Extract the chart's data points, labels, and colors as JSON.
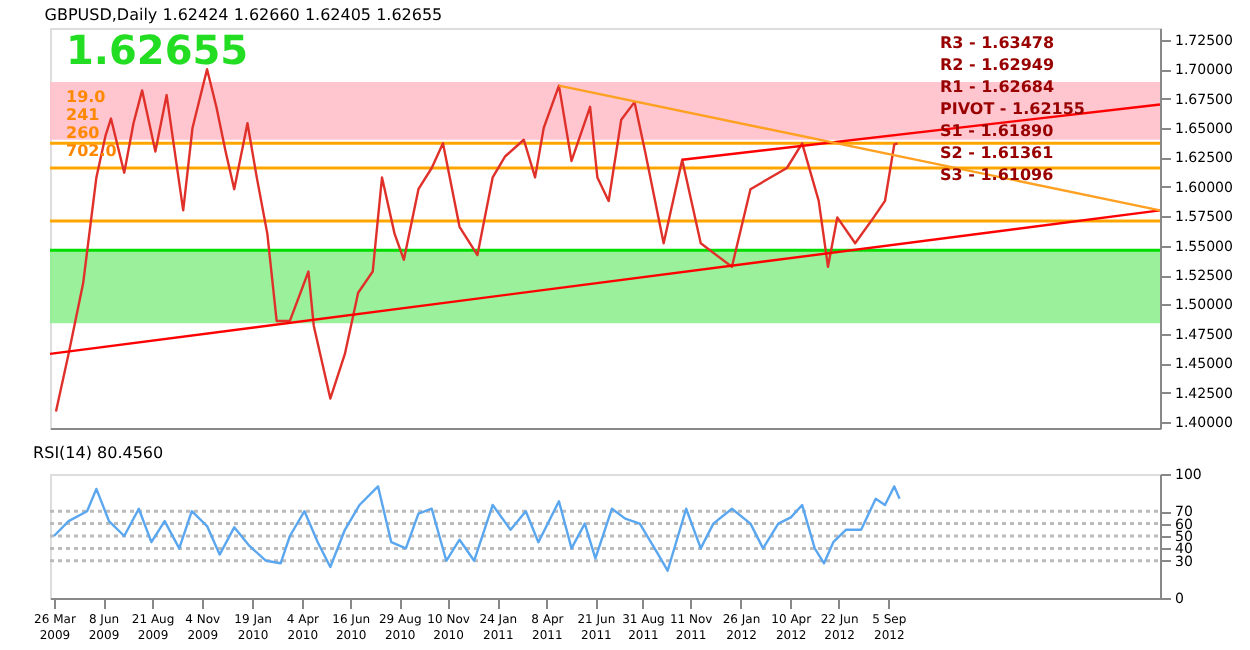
{
  "chart_data": [
    {
      "type": "line",
      "title": "GBPUSD,Daily  1.62424 1.62660 1.62405 1.62655",
      "tick_labels": "y",
      "grid": false,
      "marker": "none",
      "line_style": "solid",
      "xlim": [
        "2009-03-20",
        "2013-10-20"
      ],
      "ylim": [
        1.395,
        1.735
      ],
      "yticks": [
        {
          "value": 1.4,
          "label": "1.40000"
        },
        {
          "value": 1.425,
          "label": "1.42500"
        },
        {
          "value": 1.45,
          "label": "1.45000"
        },
        {
          "value": 1.475,
          "label": "1.47500"
        },
        {
          "value": 1.5,
          "label": "1.50000"
        },
        {
          "value": 1.525,
          "label": "1.52500"
        },
        {
          "value": 1.55,
          "label": "1.55000"
        },
        {
          "value": 1.575,
          "label": "1.57500"
        },
        {
          "value": 1.6,
          "label": "1.60000"
        },
        {
          "value": 1.625,
          "label": "1.62500"
        },
        {
          "value": 1.65,
          "label": "1.65000"
        },
        {
          "value": 1.675,
          "label": "1.67500"
        },
        {
          "value": 1.7,
          "label": "1.70000"
        },
        {
          "value": 1.725,
          "label": "1.72500"
        }
      ],
      "x": [
        "2009-03-29",
        "2009-04-17",
        "2009-05-09",
        "2009-05-29",
        "2009-06-12",
        "2009-06-20",
        "2009-07-10",
        "2009-07-24",
        "2009-08-06",
        "2009-08-26",
        "2009-09-12",
        "2009-10-07",
        "2009-10-21",
        "2009-11-12",
        "2009-11-26",
        "2009-12-10",
        "2009-12-23",
        "2010-01-12",
        "2010-01-26",
        "2010-02-11",
        "2010-02-25",
        "2010-03-17",
        "2010-04-14",
        "2010-04-22",
        "2010-05-17",
        "2010-06-08",
        "2010-06-28",
        "2010-07-20",
        "2010-08-03",
        "2010-08-22",
        "2010-09-05",
        "2010-09-27",
        "2010-10-17",
        "2010-11-03",
        "2010-11-28",
        "2010-12-25",
        "2011-01-17",
        "2011-02-05",
        "2011-03-05",
        "2011-03-22",
        "2011-04-04",
        "2011-04-27",
        "2011-05-16",
        "2011-06-13",
        "2011-06-24",
        "2011-07-11",
        "2011-07-30",
        "2011-08-19",
        "2011-09-04",
        "2011-10-02",
        "2011-10-30",
        "2011-11-27",
        "2012-01-13",
        "2012-02-10",
        "2012-04-05",
        "2012-04-28",
        "2012-05-23",
        "2012-06-06",
        "2012-06-20",
        "2012-07-17",
        "2012-08-14",
        "2012-08-31",
        "2012-09-14",
        "2012-09-19"
      ],
      "series": [
        {
          "color": "#e0302a",
          "values": [
            1.409,
            1.458,
            1.518,
            1.608,
            1.644,
            1.658,
            1.612,
            1.654,
            1.682,
            1.63,
            1.678,
            1.58,
            1.65,
            1.7,
            1.668,
            1.63,
            1.598,
            1.654,
            1.608,
            1.56,
            1.486,
            1.486,
            1.528,
            1.482,
            1.42,
            1.458,
            1.51,
            1.528,
            1.608,
            1.56,
            1.538,
            1.598,
            1.616,
            1.637,
            1.566,
            1.542,
            1.608,
            1.626,
            1.64,
            1.608,
            1.65,
            1.686,
            1.622,
            1.668,
            1.608,
            1.588,
            1.657,
            1.672,
            1.63,
            1.552,
            1.623,
            1.552,
            1.532,
            1.598,
            1.616,
            1.637,
            1.588,
            1.532,
            1.574,
            1.552,
            1.574,
            1.588,
            1.636,
            1.637
          ]
        },
        {
          "type": "line",
          "color": "#ff0000",
          "x": [
            "2009-03-20",
            "2013-10-20"
          ],
          "values": [
            1.458,
            1.58
          ]
        },
        {
          "type": "line",
          "color": "#ff0000",
          "x": [
            "2011-10-30",
            "2013-10-20"
          ],
          "values": [
            1.623,
            1.67
          ]
        },
        {
          "type": "line",
          "color": "#ffa020",
          "x": [
            "2011-04-27",
            "2013-10-20"
          ],
          "values": [
            1.686,
            1.58
          ]
        }
      ],
      "bands": [
        {
          "axis": "y",
          "from": 1.64,
          "to": 1.689,
          "color": "#ffc0cb"
        },
        {
          "axis": "y",
          "from": 1.484,
          "to": 1.546,
          "color": "#90ee90"
        }
      ],
      "ref_lines": [
        {
          "axis": "y",
          "value": 1.637,
          "color": "#ffa500",
          "line_style": "solid"
        },
        {
          "axis": "y",
          "value": 1.616,
          "color": "#ffa500",
          "line_style": "solid"
        },
        {
          "axis": "y",
          "value": 1.571,
          "color": "#ffa500",
          "line_style": "solid"
        },
        {
          "axis": "y",
          "value": 1.546,
          "color": "#00dd00",
          "line_style": "solid"
        }
      ],
      "annotations": [
        "1.62655",
        "19.0",
        "241",
        "260",
        "702.0",
        "R3 - 1.63478",
        "R2 - 1.62949",
        "R1 - 1.62684",
        "PIVOT - 1.62155",
        "S1 - 1.61890",
        "S2 - 1.61361",
        "S3 - 1.61096"
      ]
    },
    {
      "type": "line",
      "title": "RSI(14) 80.4560",
      "grid": false,
      "marker": "none",
      "line_style": "solid",
      "xlim": [
        "2009-03-20",
        "2013-10-20"
      ],
      "xticks": [
        {
          "value": "2009-03-26",
          "label": "26 Mar 2009"
        },
        {
          "value": "2009-06-08",
          "label": "8 Jun 2009"
        },
        {
          "value": "2009-08-21",
          "label": "21 Aug 2009"
        },
        {
          "value": "2009-11-04",
          "label": "4 Nov 2009"
        },
        {
          "value": "2010-01-19",
          "label": "19 Jan 2010"
        },
        {
          "value": "2010-04-04",
          "label": "4 Apr 2010"
        },
        {
          "value": "2010-06-16",
          "label": "16 Jun 2010"
        },
        {
          "value": "2010-08-29",
          "label": "29 Aug 2010"
        },
        {
          "value": "2010-11-10",
          "label": "10 Nov 2010"
        },
        {
          "value": "2011-01-24",
          "label": "24 Jan 2011"
        },
        {
          "value": "2011-04-08",
          "label": "8 Apr 2011"
        },
        {
          "value": "2011-06-21",
          "label": "21 Jun 2011"
        },
        {
          "value": "2011-08-31",
          "label": "31 Aug 2011"
        },
        {
          "value": "2011-11-11",
          "label": "11 Nov 2011"
        },
        {
          "value": "2012-01-26",
          "label": "26 Jan 2012"
        },
        {
          "value": "2012-04-10",
          "label": "10 Apr 2012"
        },
        {
          "value": "2012-06-22",
          "label": "22 Jun 2012"
        },
        {
          "value": "2012-09-05",
          "label": "5 Sep 2012"
        }
      ],
      "ylim": [
        0,
        100
      ],
      "yticks": [
        0,
        30,
        40,
        50,
        60,
        70,
        100
      ],
      "x": [
        "2009-03-26",
        "2009-04-17",
        "2009-05-15",
        "2009-05-29",
        "2009-06-17",
        "2009-07-10",
        "2009-08-01",
        "2009-08-20",
        "2009-09-09",
        "2009-10-01",
        "2009-10-20",
        "2009-11-12",
        "2009-12-01",
        "2009-12-23",
        "2010-01-15",
        "2010-02-09",
        "2010-03-03",
        "2010-03-17",
        "2010-04-08",
        "2010-04-28",
        "2010-05-17",
        "2010-06-08",
        "2010-06-30",
        "2010-07-28",
        "2010-08-17",
        "2010-09-08",
        "2010-09-27",
        "2010-10-17",
        "2010-11-08",
        "2010-11-28",
        "2010-12-20",
        "2011-01-17",
        "2011-02-13",
        "2011-03-08",
        "2011-03-27",
        "2011-04-27",
        "2011-05-16",
        "2011-06-05",
        "2011-06-21",
        "2011-07-16",
        "2011-08-05",
        "2011-08-27",
        "2011-09-24",
        "2011-10-08",
        "2011-11-05",
        "2011-11-27",
        "2011-12-16",
        "2012-01-13",
        "2012-02-10",
        "2012-02-29",
        "2012-03-23",
        "2012-04-11",
        "2012-04-28",
        "2012-05-17",
        "2012-05-31",
        "2012-06-14",
        "2012-07-03",
        "2012-07-26",
        "2012-08-17",
        "2012-08-31",
        "2012-09-14",
        "2012-09-22"
      ],
      "series": [
        {
          "color": "#5aa7f0",
          "values": [
            50,
            62,
            70,
            88,
            62,
            50,
            72,
            45,
            62,
            40,
            70,
            58,
            35,
            57,
            42,
            30,
            28,
            50,
            70,
            45,
            25,
            55,
            75,
            90,
            45,
            40,
            68,
            72,
            30,
            47,
            30,
            75,
            55,
            70,
            45,
            78,
            40,
            60,
            32,
            72,
            64,
            60,
            35,
            22,
            72,
            40,
            60,
            72,
            60,
            40,
            60,
            65,
            75,
            40,
            28,
            45,
            55,
            55,
            80,
            75,
            90,
            80
          ]
        }
      ],
      "ref_lines": [
        {
          "axis": "y",
          "value": 30,
          "color": "#bbbbbb",
          "line_style": "dotted"
        },
        {
          "axis": "y",
          "value": 40,
          "color": "#bbbbbb",
          "line_style": "dotted"
        },
        {
          "axis": "y",
          "value": 50,
          "color": "#bbbbbb",
          "line_style": "dotted"
        },
        {
          "axis": "y",
          "value": 60,
          "color": "#bbbbbb",
          "line_style": "dotted"
        },
        {
          "axis": "y",
          "value": 70,
          "color": "#bbbbbb",
          "line_style": "dotted"
        }
      ]
    }
  ]
}
